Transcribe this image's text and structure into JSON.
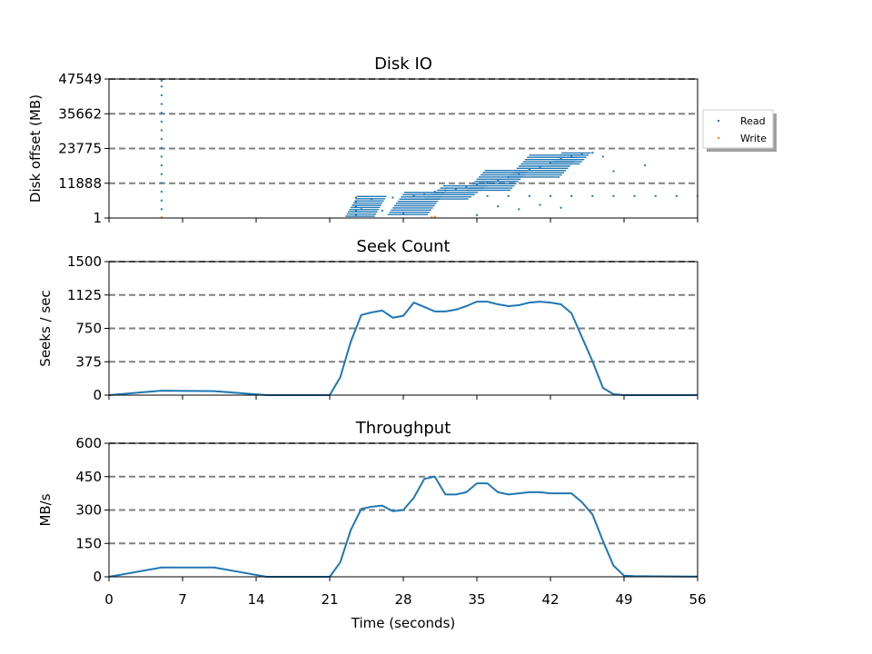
{
  "chart_data": [
    {
      "type": "scatter",
      "title": "Disk IO",
      "xlabel": "",
      "ylabel": "Disk offset (MB)",
      "xlim": [
        0,
        56
      ],
      "ylim": [
        1,
        47549
      ],
      "yticks": [
        "1",
        "11888",
        "23775",
        "35662",
        "47549"
      ],
      "grid": "horizontal dashed gray",
      "legend": {
        "placement": "right, outside axes",
        "entries": [
          "Read",
          "Write"
        ]
      },
      "series": [
        {
          "name": "Read",
          "color": "#1f77b4",
          "note_points": "selected representative access points (time s, offset MB)",
          "points": [
            [
              5,
              1
            ],
            [
              5,
              3000
            ],
            [
              5,
              6000
            ],
            [
              5,
              9000
            ],
            [
              5,
              12000
            ],
            [
              5,
              15000
            ],
            [
              5,
              18000
            ],
            [
              5,
              21000
            ],
            [
              5,
              24000
            ],
            [
              5,
              27000
            ],
            [
              5,
              30000
            ],
            [
              5,
              33000
            ],
            [
              5,
              36000
            ],
            [
              5,
              39000
            ],
            [
              5,
              42000
            ],
            [
              5,
              45000
            ],
            [
              5,
              47000
            ],
            [
              23.5,
              1000
            ],
            [
              23.5,
              2500
            ],
            [
              23.5,
              4000
            ],
            [
              23.5,
              5500
            ],
            [
              23.5,
              7000
            ],
            [
              24,
              3000
            ],
            [
              25,
              6500
            ],
            [
              26,
              2500
            ],
            [
              27,
              7000
            ],
            [
              28,
              1500
            ],
            [
              29,
              7500
            ],
            [
              30,
              8000
            ],
            [
              31,
              9000
            ],
            [
              32,
              9500
            ],
            [
              33,
              10000
            ],
            [
              34,
              10500
            ],
            [
              35,
              11500
            ],
            [
              36,
              12000
            ],
            [
              37,
              13000
            ],
            [
              38,
              14000
            ],
            [
              39,
              15000
            ],
            [
              40,
              16500
            ],
            [
              41,
              17500
            ],
            [
              42,
              19000
            ],
            [
              43,
              20500
            ],
            [
              44,
              21000
            ],
            [
              45,
              22000
            ],
            [
              46,
              22300
            ],
            [
              47,
              21000
            ],
            [
              48,
              16000
            ],
            [
              51,
              18000
            ],
            [
              36,
              7500
            ],
            [
              38,
              7500
            ],
            [
              40,
              7500
            ],
            [
              42,
              7500
            ],
            [
              44,
              7500
            ],
            [
              46,
              7500
            ],
            [
              48,
              7500
            ],
            [
              50,
              7500
            ],
            [
              52,
              7500
            ],
            [
              54,
              7500
            ],
            [
              56,
              7500
            ],
            [
              37,
              4000
            ],
            [
              39,
              3000
            ],
            [
              41,
              4500
            ],
            [
              43,
              3500
            ],
            [
              35,
              1000
            ]
          ]
        },
        {
          "name": "Write",
          "color": "#ff7f0e",
          "points": [
            [
              5,
              200
            ],
            [
              30.7,
              200
            ],
            [
              31,
              400
            ]
          ]
        }
      ]
    },
    {
      "type": "line",
      "title": "Seek Count",
      "xlabel": "",
      "ylabel": "Seeks / sec",
      "xlim": [
        0,
        56
      ],
      "ylim": [
        0,
        1500
      ],
      "yticks": [
        "0",
        "375",
        "750",
        "1125",
        "1500"
      ],
      "grid": "horizontal dashed gray",
      "series": [
        {
          "color": "#1f77b4",
          "x": [
            0,
            5,
            10,
            15,
            21,
            22,
            23,
            24,
            25,
            26,
            27,
            28,
            29,
            30,
            31,
            32,
            33,
            34,
            35,
            36,
            37,
            38,
            39,
            40,
            41,
            42,
            43,
            44,
            45,
            46,
            47,
            48,
            49,
            50,
            52,
            56
          ],
          "y": [
            0,
            50,
            45,
            0,
            0,
            200,
            600,
            900,
            930,
            950,
            870,
            890,
            1040,
            990,
            940,
            940,
            960,
            1000,
            1050,
            1050,
            1020,
            1000,
            1010,
            1040,
            1050,
            1040,
            1020,
            920,
            650,
            380,
            80,
            10,
            0,
            0,
            0,
            0
          ]
        }
      ]
    },
    {
      "type": "line",
      "title": "Throughput",
      "xlabel": "Time (seconds)",
      "ylabel": "MB/s",
      "xlim": [
        0,
        56
      ],
      "ylim": [
        0,
        600
      ],
      "xticks": [
        "0",
        "7",
        "14",
        "21",
        "28",
        "35",
        "42",
        "49",
        "56"
      ],
      "yticks": [
        "0",
        "150",
        "300",
        "450",
        "600"
      ],
      "grid": "horizontal dashed gray",
      "series": [
        {
          "color": "#1f77b4",
          "x": [
            0,
            5,
            10,
            15,
            21,
            22,
            23,
            24,
            25,
            26,
            27,
            28,
            29,
            30,
            31,
            32,
            33,
            34,
            35,
            36,
            37,
            38,
            39,
            40,
            41,
            42,
            43,
            44,
            45,
            46,
            47,
            48,
            49,
            50,
            52,
            56
          ],
          "y": [
            0,
            42,
            42,
            0,
            0,
            65,
            210,
            305,
            315,
            320,
            295,
            300,
            355,
            440,
            450,
            370,
            370,
            380,
            420,
            420,
            380,
            370,
            375,
            380,
            380,
            375,
            375,
            375,
            335,
            280,
            160,
            50,
            5,
            3,
            2,
            1
          ]
        }
      ]
    }
  ]
}
